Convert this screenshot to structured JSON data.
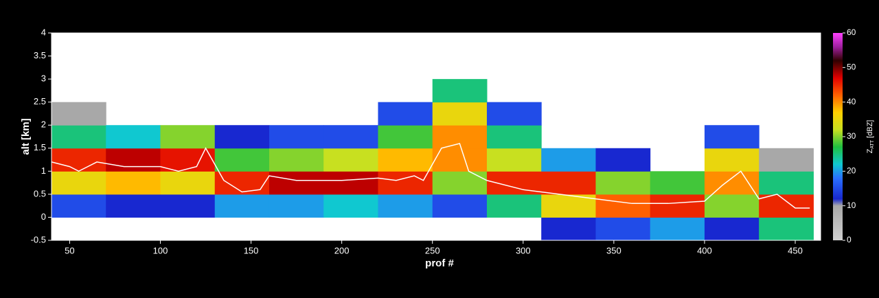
{
  "chart_data": {
    "type": "heatmap",
    "xlabel": "prof #",
    "ylabel": "alt [km]",
    "xlim": [
      40,
      464
    ],
    "ylim": [
      -0.5,
      4
    ],
    "xticks": [
      50,
      100,
      150,
      200,
      250,
      300,
      350,
      400,
      450
    ],
    "yticks": [
      -0.5,
      0,
      0.5,
      1,
      1.5,
      2,
      2.5,
      3,
      3.5,
      4
    ],
    "x_edges": [
      40,
      70,
      100,
      130,
      160,
      190,
      220,
      250,
      280,
      310,
      340,
      370,
      400,
      430,
      460
    ],
    "y_edges": [
      -0.5,
      0,
      0.5,
      1,
      1.5,
      2,
      2.5,
      3,
      3.5,
      4
    ],
    "z": [
      [
        null,
        15,
        35,
        45,
        25,
        10,
        null,
        null,
        null
      ],
      [
        null,
        12,
        38,
        48,
        22,
        null,
        null,
        null,
        null
      ],
      [
        null,
        12,
        35,
        46,
        30,
        null,
        null,
        null,
        null
      ],
      [
        null,
        20,
        45,
        28,
        12,
        null,
        null,
        null,
        null
      ],
      [
        null,
        20,
        48,
        30,
        15,
        null,
        null,
        null,
        null
      ],
      [
        null,
        22,
        48,
        32,
        15,
        null,
        null,
        null,
        null
      ],
      [
        null,
        20,
        45,
        38,
        28,
        15,
        null,
        null,
        null
      ],
      [
        null,
        15,
        30,
        40,
        40,
        35,
        25,
        null,
        null
      ],
      [
        null,
        25,
        45,
        32,
        25,
        15,
        null,
        null,
        null
      ],
      [
        12,
        35,
        45,
        20,
        null,
        null,
        null,
        null,
        null
      ],
      [
        15,
        42,
        30,
        12,
        null,
        null,
        null,
        null,
        null
      ],
      [
        20,
        45,
        28,
        null,
        null,
        null,
        null,
        null,
        null
      ],
      [
        12,
        30,
        40,
        35,
        15,
        null,
        null,
        null,
        null
      ],
      [
        25,
        45,
        25,
        10,
        null,
        null,
        null,
        null,
        null
      ]
    ],
    "line": {
      "color": "#ffffff",
      "x": [
        40,
        50,
        55,
        65,
        80,
        100,
        110,
        120,
        125,
        135,
        145,
        155,
        160,
        175,
        200,
        220,
        230,
        240,
        245,
        255,
        265,
        270,
        280,
        300,
        320,
        340,
        360,
        380,
        400,
        410,
        420,
        430,
        440,
        450,
        458
      ],
      "values": [
        1.2,
        1.1,
        1.0,
        1.2,
        1.1,
        1.1,
        1.0,
        1.1,
        1.5,
        0.8,
        0.55,
        0.6,
        0.9,
        0.8,
        0.8,
        0.85,
        0.8,
        0.9,
        0.8,
        1.5,
        1.6,
        1.0,
        0.8,
        0.6,
        0.5,
        0.4,
        0.3,
        0.3,
        0.35,
        0.7,
        1.0,
        0.4,
        0.5,
        0.2,
        0.2
      ]
    },
    "colorbar": {
      "symbol": "Z",
      "subscript": "ATT",
      "unit": "[dBZ]",
      "clim": [
        0,
        60
      ],
      "ticks": [
        0,
        10,
        20,
        30,
        40,
        50,
        60
      ],
      "colorscale": [
        [
          0,
          "#d0d0d0"
        ],
        [
          10,
          "#a8a8a8"
        ],
        [
          12,
          "#1828d0"
        ],
        [
          18,
          "#2a70ff"
        ],
        [
          22,
          "#10c8d0"
        ],
        [
          27,
          "#20c040"
        ],
        [
          32,
          "#c8e020"
        ],
        [
          37,
          "#ffd000"
        ],
        [
          42,
          "#ff6000"
        ],
        [
          47,
          "#e00000"
        ],
        [
          52,
          "#300000"
        ],
        [
          56,
          "#a020a0"
        ],
        [
          60,
          "#ff40ff"
        ]
      ]
    }
  }
}
